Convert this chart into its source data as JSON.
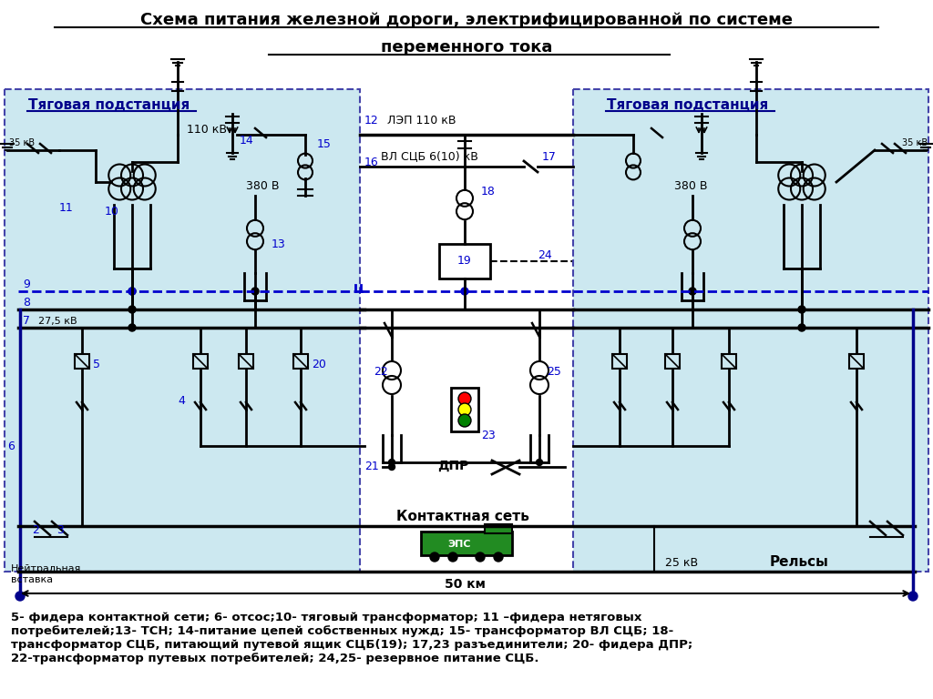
{
  "title_line1": "Схема питания железной дороги, электрифицированной по системе",
  "title_line2": "переменного тока",
  "bg_color": "#cce8f0",
  "bg_color_outer": "#ffffff",
  "substation_label": "Тяговая подстанция",
  "label_110kv": "110 кВ",
  "label_380v": "380 В",
  "label_35kv": "35 кВ",
  "label_275kv": "27,5 кВ",
  "label_lep": "ЛЭП 110 кВ",
  "label_vl": "ВЛ СЦБ 6(10) кВ",
  "label_contact": "Контактная сеть",
  "label_neutral": "Нейтральная\nвставка",
  "label_rails": "Рельсы",
  "label_dpr": "ДПР",
  "label_eps": "ЭПС",
  "label_25kv": "25 кВ",
  "label_50km": "50 км",
  "caption": "5- фидера контактной сети; 6- отсос;10- тяговый трансформатор; 11 –фидера нетяговых\nпотребителей;13- ТСН; 14-питание цепей собственных нужд; 15- трансформатор ВЛ СЦБ; 18-\nтрансформатор СЦБ, питающий путевой ящик СЦБ(19); 17,23 разъединители; 20- фидера ДПР;\n22-трансформатор путевых потребителей; 24,25- резервное питание СЦБ."
}
